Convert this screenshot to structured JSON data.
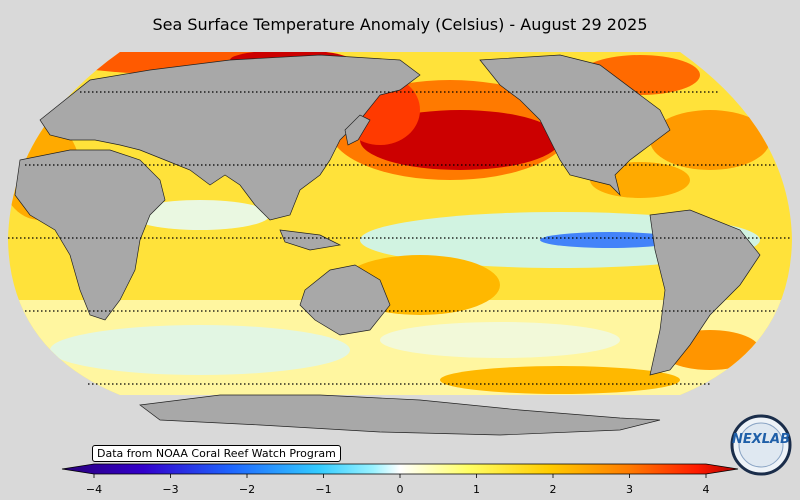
{
  "title": "Sea Surface Temperature Anomaly (Celsius) - August 29 2025",
  "credit": "Data from NOAA Coral Reef Watch Program",
  "logo_text": "NEXLAB",
  "colorbar": {
    "min": -4,
    "max": 4,
    "ticks": [
      "−4",
      "−3",
      "−2",
      "−1",
      "0",
      "1",
      "2",
      "3",
      "4"
    ],
    "colors": [
      "#2a0077",
      "#3300cc",
      "#1f66ff",
      "#33ccff",
      "#99f2ff",
      "#ffffff",
      "#ffff66",
      "#ffcc00",
      "#ff7a00",
      "#ff1a00",
      "#aa0000"
    ]
  },
  "colors": {
    "land": "#a8a8a8",
    "background": "#d9d9d9"
  }
}
